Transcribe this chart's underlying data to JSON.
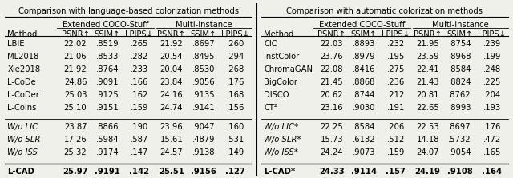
{
  "left_title": "Comparison with language-based colorization methods",
  "right_title": "Comparison with automatic colorization methods",
  "col_headers_sub": [
    "Extended COCO-Stuff",
    "Multi-instance"
  ],
  "col_headers_metrics": [
    "PSNR↑",
    "SSIM↑",
    "LPIPS↓",
    "PSNR↑",
    "SSIM↑",
    "LPIPS↓"
  ],
  "left_rows": [
    [
      "LBIE",
      "22.02",
      ".8519",
      ".265",
      "21.92",
      ".8697",
      ".260"
    ],
    [
      "ML2018",
      "21.06",
      ".8533",
      ".282",
      "20.54",
      ".8495",
      ".294"
    ],
    [
      "Xie2018",
      "21.92",
      ".8764",
      ".233",
      "20.04",
      ".8530",
      ".268"
    ],
    [
      "L-CoDe",
      "24.86",
      ".9091",
      ".166",
      "23.84",
      ".9056",
      ".176"
    ],
    [
      "L-CoDer",
      "25.03",
      ".9125",
      ".162",
      "24.16",
      ".9135",
      ".168"
    ],
    [
      "L-CoIns",
      "25.10",
      ".9151",
      ".159",
      "24.74",
      ".9141",
      ".156"
    ]
  ],
  "left_ablation": [
    [
      "W/o LIC",
      "23.87",
      ".8866",
      ".190",
      "23.96",
      ".9047",
      ".160"
    ],
    [
      "W/o SLR",
      "17.26",
      ".5984",
      ".587",
      "15.61",
      ".4879",
      ".531"
    ],
    [
      "W/o ISS",
      "25.32",
      ".9174",
      ".147",
      "24.57",
      ".9138",
      ".149"
    ]
  ],
  "left_final": [
    "L-CAD",
    "25.97",
    ".9191",
    ".142",
    "25.51",
    ".9156",
    ".127"
  ],
  "right_rows": [
    [
      "CIC",
      "22.03",
      ".8893",
      ".232",
      "21.95",
      ".8754",
      ".239"
    ],
    [
      "InstColor",
      "23.76",
      ".8979",
      ".195",
      "23.59",
      ".8968",
      ".199"
    ],
    [
      "ChromaGAN",
      "22.08",
      ".8416",
      ".275",
      "22.41",
      ".8584",
      ".248"
    ],
    [
      "BigColor",
      "21.45",
      ".8868",
      ".236",
      "21.43",
      ".8824",
      ".225"
    ],
    [
      "DISCO",
      "20.62",
      ".8744",
      ".212",
      "20.81",
      ".8762",
      ".204"
    ],
    [
      "CT²",
      "23.16",
      ".9030",
      ".191",
      "22.65",
      ".8993",
      ".193"
    ]
  ],
  "right_ablation": [
    [
      "W/o LIC*",
      "22.25",
      ".8584",
      ".206",
      "22.53",
      ".8697",
      ".176"
    ],
    [
      "W/o SLR*",
      "15.73",
      ".6132",
      ".512",
      "14.18",
      ".5732",
      ".472"
    ],
    [
      "W/o ISS*",
      "24.24",
      ".9073",
      ".159",
      "24.07",
      ".9054",
      ".165"
    ]
  ],
  "right_final": [
    "L-CAD*",
    "24.33",
    ".9114",
    ".157",
    "24.19",
    ".9108",
    ".164"
  ],
  "font_size": 7.2,
  "bg_color": "#f0f0eb"
}
